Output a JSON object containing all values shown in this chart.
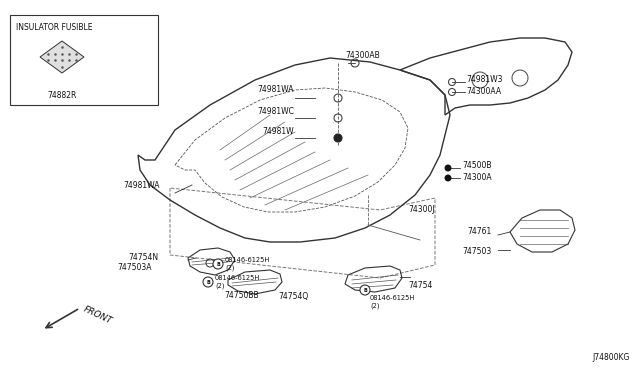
{
  "bg_color": "#ffffff",
  "fig_width": 6.4,
  "fig_height": 3.72,
  "dpi": 100,
  "diagram_code": "J74800KG",
  "inset_label": "INSULATOR FUSIBLE",
  "inset_part": "74882R",
  "line_color": "#333333",
  "text_color": "#111111",
  "font_size": 5.5,
  "small_font_size": 4.8
}
